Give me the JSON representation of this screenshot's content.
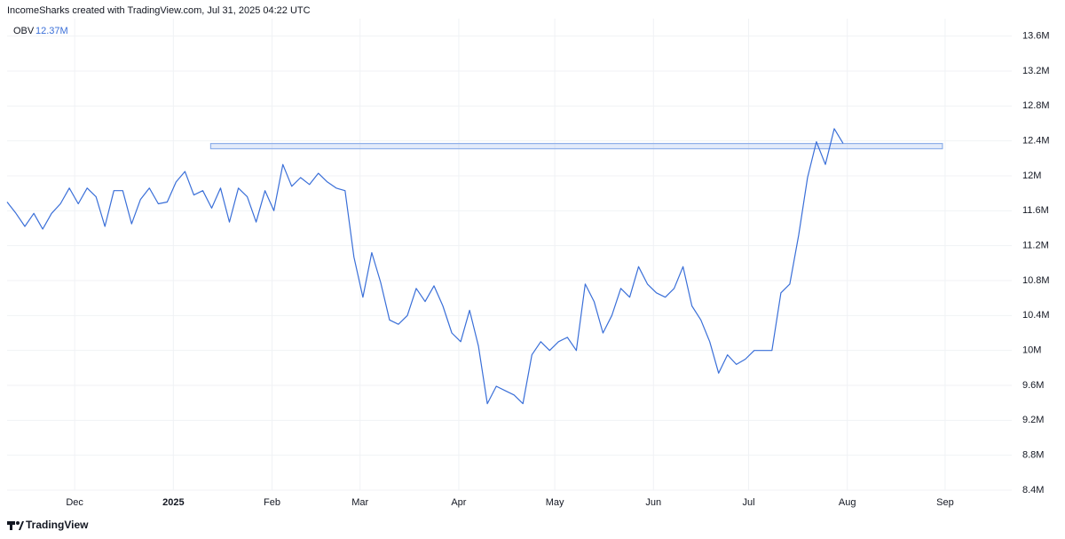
{
  "header": {
    "text": "IncomeSharks created with TradingView.com, Jul 31, 2025 04:22 UTC"
  },
  "footer": {
    "brand": "TradingView"
  },
  "chart_data": {
    "type": "line",
    "series": [
      {
        "name": "OBV",
        "color": "#3a6fd8",
        "values": [
          11.7,
          11.57,
          11.42,
          11.57,
          11.39,
          11.57,
          11.68,
          11.86,
          11.68,
          11.86,
          11.76,
          11.42,
          11.83,
          11.83,
          11.45,
          11.73,
          11.86,
          11.68,
          11.7,
          11.93,
          12.05,
          11.78,
          11.83,
          11.63,
          11.86,
          11.47,
          11.86,
          11.76,
          11.47,
          11.83,
          11.6,
          12.13,
          11.88,
          11.98,
          11.9,
          12.03,
          11.93,
          11.86,
          11.83,
          11.07,
          10.61,
          11.12,
          10.78,
          10.35,
          10.3,
          10.4,
          10.71,
          10.56,
          10.74,
          10.51,
          10.2,
          10.1,
          10.46,
          10.05,
          9.39,
          9.59,
          9.54,
          9.49,
          9.39,
          9.95,
          10.1,
          10.0,
          10.1,
          10.15,
          10.0,
          10.76,
          10.56,
          10.2,
          10.4,
          10.71,
          10.61,
          10.96,
          10.76,
          10.66,
          10.61,
          10.71,
          10.96,
          10.51,
          10.35,
          10.1,
          9.74,
          9.95,
          9.84,
          9.9,
          10.0,
          10.0,
          10.0,
          10.66,
          10.76,
          11.32,
          11.98,
          12.39,
          12.13,
          12.54,
          12.37
        ]
      }
    ],
    "current_value": {
      "value": 12.37,
      "label": "12.37M"
    },
    "resistance_band": {
      "x": [
        22.9,
        105.2
      ],
      "y": [
        12.31,
        12.37
      ],
      "color": "#8fb0ea"
    },
    "xlim": [
      0,
      111
    ],
    "xticks": [
      {
        "value": 7.6,
        "label": "Dec"
      },
      {
        "value": 18.7,
        "label": "2025"
      },
      {
        "value": 29.8,
        "label": "Feb"
      },
      {
        "value": 39.7,
        "label": "Mar"
      },
      {
        "value": 50.8,
        "label": "Apr"
      },
      {
        "value": 61.6,
        "label": "May"
      },
      {
        "value": 72.7,
        "label": "Jun"
      },
      {
        "value": 83.4,
        "label": "Jul"
      },
      {
        "value": 94.5,
        "label": "Aug"
      },
      {
        "value": 105.5,
        "label": "Sep"
      }
    ],
    "ylim": [
      8.4,
      13.8
    ],
    "yticks": [
      {
        "value": 8.4,
        "label": "8.4M"
      },
      {
        "value": 8.8,
        "label": "8.8M"
      },
      {
        "value": 9.2,
        "label": "9.2M"
      },
      {
        "value": 9.6,
        "label": "9.6M"
      },
      {
        "value": 10,
        "label": "10M"
      },
      {
        "value": 10.4,
        "label": "10.4M"
      },
      {
        "value": 10.8,
        "label": "10.8M"
      },
      {
        "value": 11.2,
        "label": "11.2M"
      },
      {
        "value": 11.6,
        "label": "11.6M"
      },
      {
        "value": 12,
        "label": "12M"
      },
      {
        "value": 12.4,
        "label": "12.4M"
      },
      {
        "value": 12.8,
        "label": "12.8M"
      },
      {
        "value": 13.2,
        "label": "13.2M"
      },
      {
        "value": 13.6,
        "label": "13.6M"
      }
    ],
    "grid": true
  }
}
